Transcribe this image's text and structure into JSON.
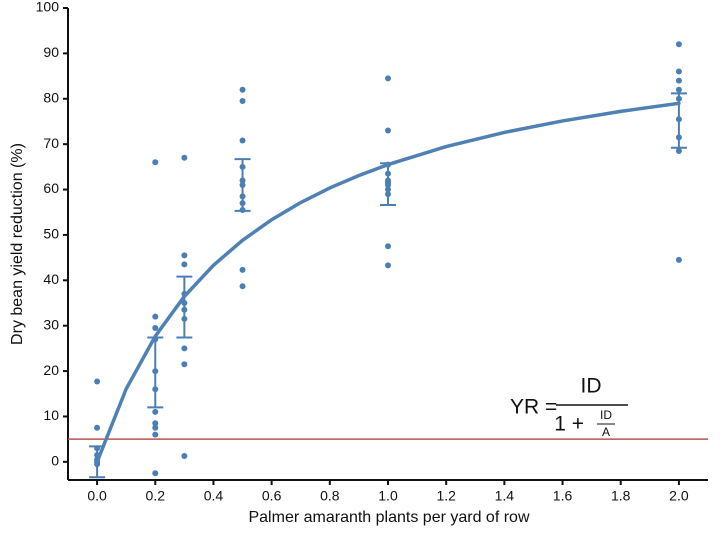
{
  "chart_data": {
    "type": "scatter",
    "xlabel": "Palmer amaranth plants per yard of row",
    "ylabel": "Dry bean yield reduction (%)",
    "xlim": [
      -0.1,
      2.1
    ],
    "ylim": [
      -4,
      100
    ],
    "xticks": [
      {
        "value": 0,
        "label": "0.0"
      },
      {
        "value": 0.2,
        "label": "0.2"
      },
      {
        "value": 0.4,
        "label": "0.4"
      },
      {
        "value": 0.6,
        "label": "0.6"
      },
      {
        "value": 0.8,
        "label": "0.8"
      },
      {
        "value": 1,
        "label": "1.0"
      },
      {
        "value": 1.2,
        "label": "1.2"
      },
      {
        "value": 1.4,
        "label": "1.4"
      },
      {
        "value": 1.6,
        "label": "1.6"
      },
      {
        "value": 1.8,
        "label": "1.8"
      },
      {
        "value": 2,
        "label": "2.0"
      }
    ],
    "yticks": [
      0,
      10,
      20,
      30,
      40,
      50,
      60,
      70,
      80,
      90,
      100
    ],
    "points": {
      "color": "#4a7fb5",
      "x": [
        0,
        0,
        0,
        0,
        0,
        0,
        0,
        0.2,
        0.2,
        0.2,
        0.2,
        0.2,
        0.2,
        0.2,
        0.2,
        0.2,
        0.2,
        0.2,
        0.3,
        0.3,
        0.3,
        0.3,
        0.3,
        0.3,
        0.3,
        0.3,
        0.3,
        0.3,
        0.5,
        0.5,
        0.5,
        0.5,
        0.5,
        0.5,
        0.5,
        0.5,
        0.5,
        0.5,
        0.5,
        1,
        1,
        1,
        1,
        1,
        1,
        1,
        1,
        1,
        1,
        1,
        2,
        2,
        2,
        2,
        2,
        2,
        2,
        2,
        2
      ],
      "values": [
        17.7,
        7.5,
        3,
        1.5,
        0.5,
        0,
        -0.5,
        66,
        32,
        29.5,
        27,
        20,
        16,
        11,
        8.5,
        7.5,
        6,
        -2.5,
        67,
        45.5,
        43.5,
        37,
        35,
        33.5,
        31.5,
        25,
        21.5,
        1.3,
        82,
        79.5,
        70.8,
        65,
        62,
        61,
        58.5,
        57,
        55.5,
        42.3,
        38.7,
        84.5,
        73,
        65.5,
        63.5,
        62,
        61.5,
        61,
        60,
        59,
        47.5,
        43.3,
        92,
        86,
        84,
        82,
        80,
        75.5,
        71.5,
        68.5,
        44.5
      ]
    },
    "errorbars": {
      "color": "#4a7fb5",
      "x": [
        0,
        0.2,
        0.3,
        0.5,
        1,
        2
      ],
      "values": [
        0,
        19.7,
        34.1,
        61,
        61.2,
        75.2
      ],
      "errors": [
        3.4,
        7.7,
        6.7,
        5.7,
        4.6,
        6
      ]
    },
    "fit": {
      "color": "#4f81b5",
      "x": [
        0,
        0.1,
        0.2,
        0.3,
        0.4,
        0.5,
        0.6,
        0.7,
        0.8,
        0.9,
        1,
        1.2,
        1.4,
        1.6,
        1.8,
        2
      ],
      "values": [
        0,
        16.07,
        27.68,
        36.45,
        43.31,
        48.82,
        53.35,
        57.14,
        60.35,
        63.1,
        65.5,
        69.46,
        72.59,
        75.12,
        77.23,
        79
      ]
    },
    "reference_line": {
      "value": 5,
      "color": "#c0504d"
    },
    "equation": {
      "lhs": "YR =",
      "numerator": "ID",
      "denominator": "1 +",
      "inner_numerator": "ID",
      "inner_denominator": "A"
    }
  }
}
